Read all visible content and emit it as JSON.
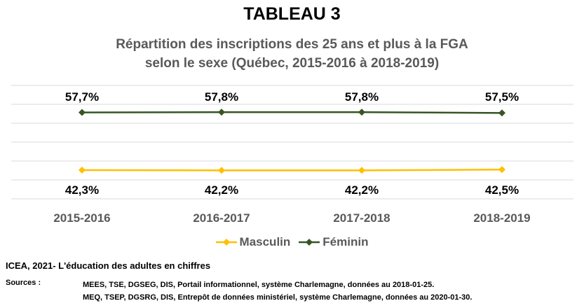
{
  "header": {
    "title": "TABLEAU 3",
    "subtitle_line1": "Répartition des inscriptions des 25 ans et plus à la FGA",
    "subtitle_line2": "selon le sexe (Québec, 2015-2016 à 2018-2019)"
  },
  "chart_data": {
    "type": "line",
    "categories": [
      "2015-2016",
      "2016-2017",
      "2017-2018",
      "2018-2019"
    ],
    "series": [
      {
        "name": "Masculin",
        "values": [
          42.3,
          42.2,
          42.2,
          42.5
        ],
        "labels": [
          "42,3%",
          "42,2%",
          "42,2%",
          "42,5%"
        ],
        "color": "#FFC000"
      },
      {
        "name": "Féminin",
        "values": [
          57.7,
          57.8,
          57.8,
          57.5
        ],
        "labels": [
          "57,7%",
          "57,8%",
          "57,8%",
          "57,5%"
        ],
        "color": "#375623"
      }
    ],
    "grid": true,
    "legend_position": "bottom",
    "marker": "diamond",
    "gridline_color": "#D9D9D9"
  },
  "footer": {
    "source_title": "ICEA, 2021- L'éducation des adultes en chiffres",
    "sources_label": "Sources :",
    "sources": [
      "MEES, TSE, DGSEG, DIS, Portail informationnel, système Charlemagne, données au 2018-01-25.",
      "MEQ, TSEP, DGSRG, DIS, Entrepôt de données ministériel, système Charlemagne, données au 2020-01-30."
    ]
  }
}
